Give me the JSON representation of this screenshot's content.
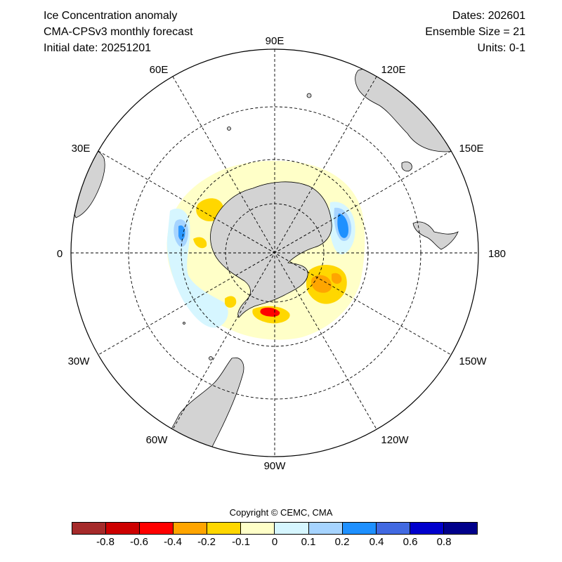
{
  "header": {
    "title": "Ice Concentration anomaly",
    "model": "CMA-CPSv3 monthly forecast",
    "initial_date": "Initial date: 20251201",
    "dates": "Dates: 202601",
    "ensemble": "Ensemble Size = 21",
    "units": "Units: 0-1"
  },
  "map": {
    "projection": "south-polar-stereographic",
    "longitude_labels": [
      "90E",
      "120E",
      "150E",
      "180",
      "150W",
      "120W",
      "90W",
      "60W",
      "30W",
      "0",
      "30E",
      "60E"
    ],
    "land_color": "#d3d3d3",
    "graticule_style": "dashed"
  },
  "colorbar": {
    "copyright": "Copyright © CEMC, CMA",
    "colors": [
      "#a52a2a",
      "#cd0000",
      "#ff0000",
      "#ffa500",
      "#ffd700",
      "#ffffc8",
      "#d6f6ff",
      "#a6d4ff",
      "#1e90ff",
      "#4169e1",
      "#0000cd",
      "#00008b"
    ],
    "tick_labels": [
      "-0.8",
      "-0.6",
      "-0.4",
      "-0.2",
      "-0.1",
      "0",
      "0.1",
      "0.2",
      "0.4",
      "0.6",
      "0.8"
    ]
  }
}
